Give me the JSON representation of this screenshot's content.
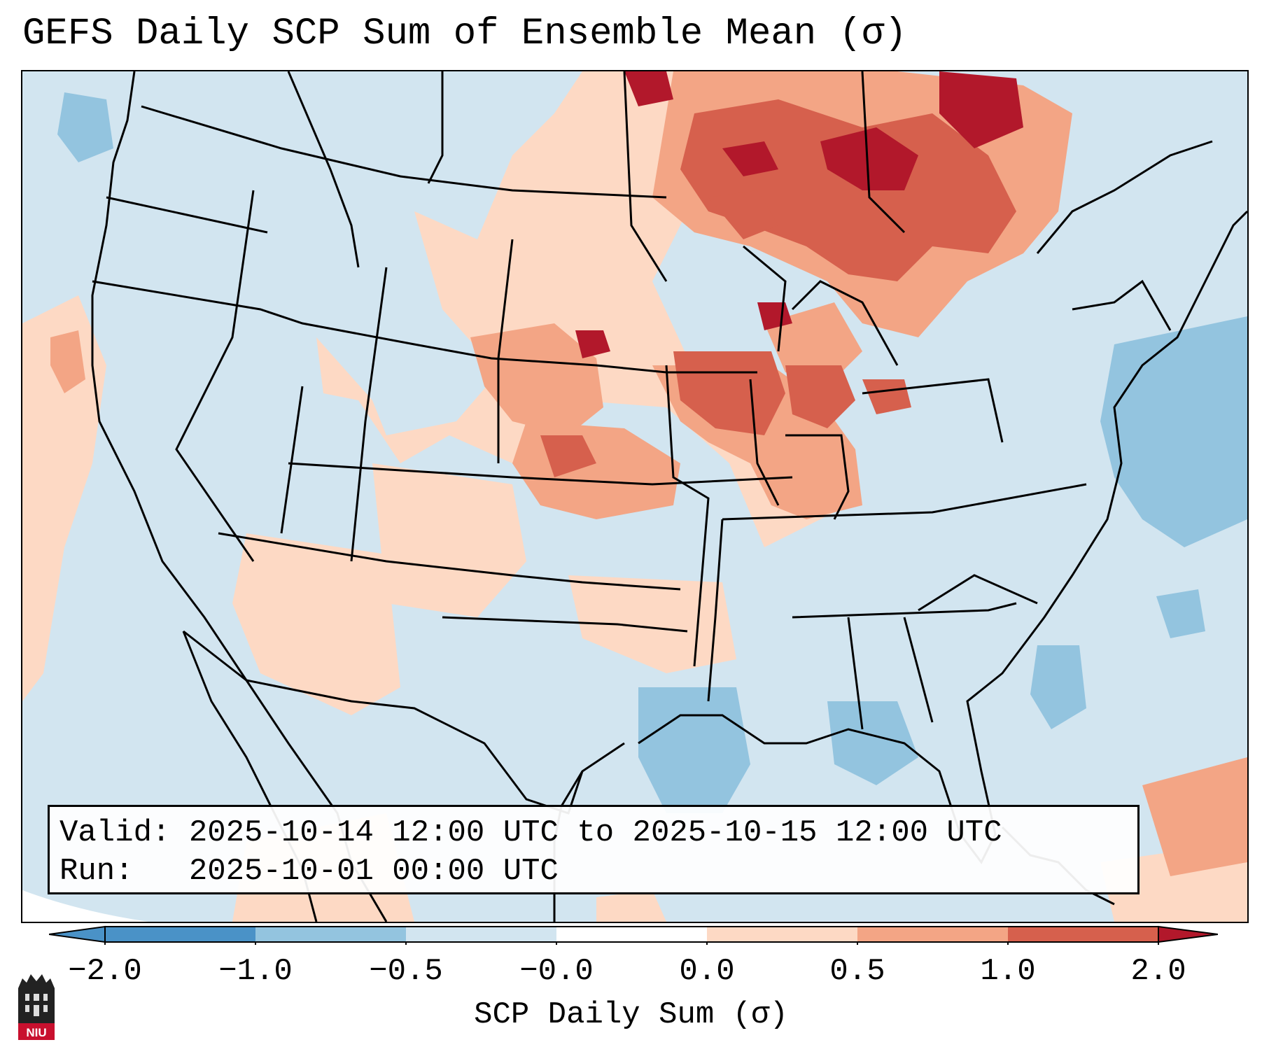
{
  "title": "GEFS Daily SCP Sum of Ensemble Mean (σ)",
  "info": {
    "valid_line": "Valid: 2025-10-14 12:00 UTC to 2025-10-15 12:00 UTC",
    "run_line": "Run:   2025-10-01 00:00 UTC"
  },
  "colorbar": {
    "label": "SCP Daily Sum (σ)",
    "ticks": [
      "−2.0",
      "−1.0",
      "−0.5",
      "−0.0",
      "0.0",
      "0.5",
      "1.0",
      "2.0"
    ],
    "colors": [
      "#4a92c7",
      "#93c4df",
      "#d2e5f0",
      "#ffffff",
      "#fdd9c4",
      "#f3a585",
      "#d6604d",
      "#b2182b"
    ]
  },
  "logo": {
    "text": "NIU"
  }
}
